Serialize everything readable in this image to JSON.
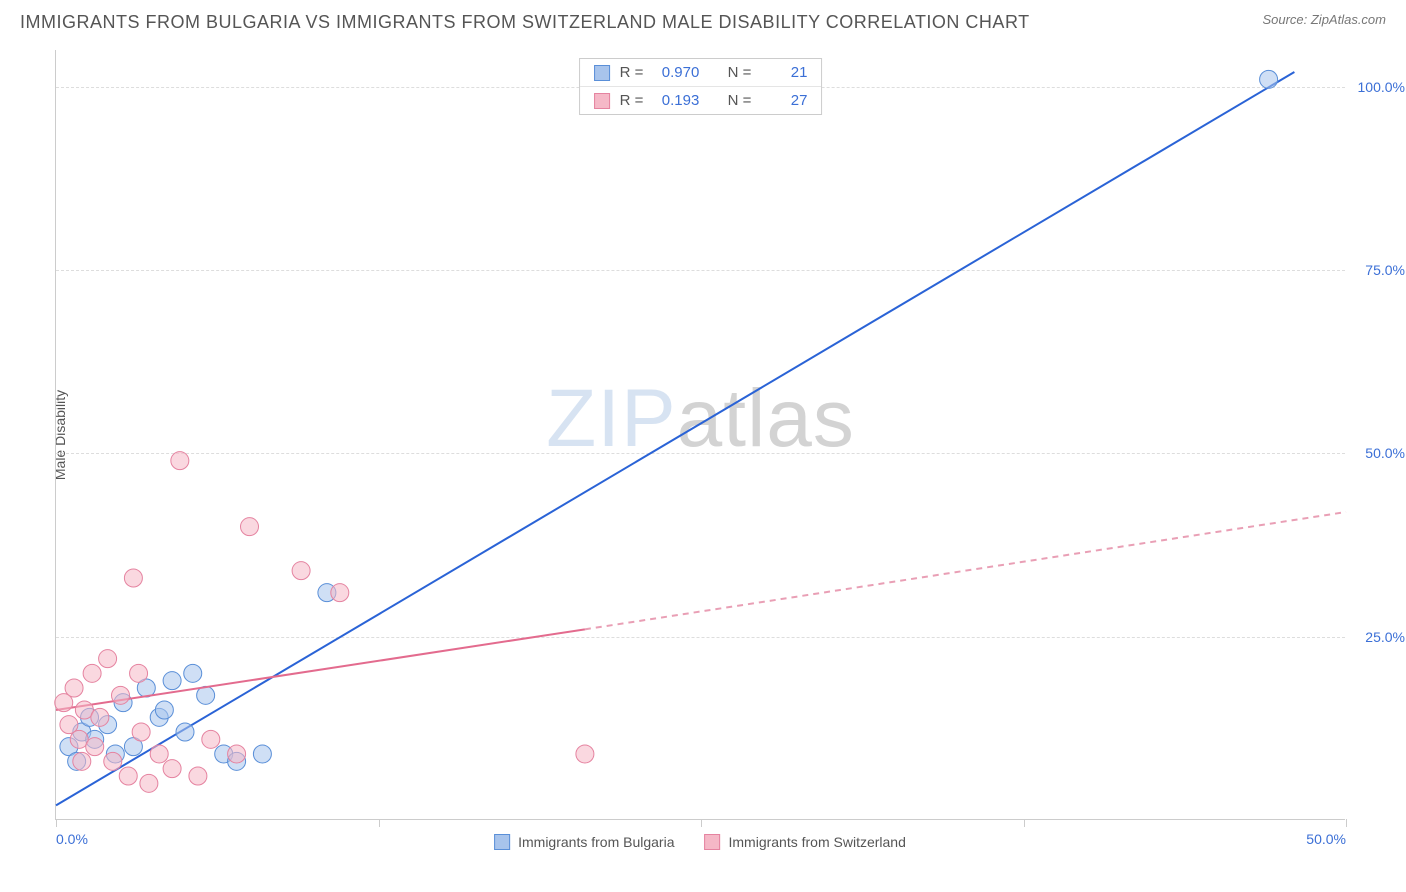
{
  "header": {
    "title": "IMMIGRANTS FROM BULGARIA VS IMMIGRANTS FROM SWITZERLAND MALE DISABILITY CORRELATION CHART",
    "source_prefix": "Source: ",
    "source": "ZipAtlas.com"
  },
  "chart": {
    "type": "scatter",
    "ylabel": "Male Disability",
    "watermark_a": "ZIP",
    "watermark_b": "atlas",
    "xlim": [
      0,
      50
    ],
    "ylim": [
      0,
      105
    ],
    "xtick_positions": [
      0,
      12.5,
      25,
      37.5,
      50
    ],
    "xtick_labels": [
      "0.0%",
      "",
      "",
      "",
      "50.0%"
    ],
    "ytick_positions": [
      25,
      50,
      75,
      100
    ],
    "ytick_labels": [
      "25.0%",
      "50.0%",
      "75.0%",
      "100.0%"
    ],
    "background": "#ffffff",
    "grid_color": "#dddddd",
    "axis_color": "#cccccc",
    "label_color": "#555555",
    "tick_label_color": "#3b6fd6",
    "marker_radius": 9,
    "marker_opacity": 0.55,
    "reg_linewidth_solid": 2,
    "series": [
      {
        "id": "bulgaria",
        "label": "Immigrants from Bulgaria",
        "color_fill": "#a8c4ec",
        "color_stroke": "#5a8fd8",
        "reg_line": {
          "x1": 0,
          "y1": 2,
          "x2": 48,
          "y2": 102,
          "dash": "none",
          "color": "#2a63d6"
        },
        "reg_line_ext": null,
        "stats": {
          "R": "0.970",
          "N": "21"
        },
        "points": [
          [
            0.5,
            10
          ],
          [
            0.8,
            8
          ],
          [
            1.0,
            12
          ],
          [
            1.3,
            14
          ],
          [
            1.5,
            11
          ],
          [
            2.0,
            13
          ],
          [
            2.3,
            9
          ],
          [
            2.6,
            16
          ],
          [
            3.0,
            10
          ],
          [
            3.5,
            18
          ],
          [
            4.0,
            14
          ],
          [
            4.5,
            19
          ],
          [
            5.0,
            12
          ],
          [
            5.3,
            20
          ],
          [
            5.8,
            17
          ],
          [
            6.5,
            9
          ],
          [
            7.0,
            8
          ],
          [
            8.0,
            9
          ],
          [
            10.5,
            31
          ],
          [
            47.0,
            101
          ],
          [
            4.2,
            15
          ]
        ]
      },
      {
        "id": "switzerland",
        "label": "Immigrants from Switzerland",
        "color_fill": "#f5b8c7",
        "color_stroke": "#e583a0",
        "reg_line": {
          "x1": 0,
          "y1": 15,
          "x2": 20.5,
          "y2": 26,
          "dash": "none",
          "color": "#e36b8e"
        },
        "reg_line_ext": {
          "x1": 20.5,
          "y1": 26,
          "x2": 50,
          "y2": 42,
          "dash": "6,5",
          "color": "#e99fb5"
        },
        "stats": {
          "R": "0.193",
          "N": "27"
        },
        "points": [
          [
            0.3,
            16
          ],
          [
            0.5,
            13
          ],
          [
            0.7,
            18
          ],
          [
            0.9,
            11
          ],
          [
            1.1,
            15
          ],
          [
            1.4,
            20
          ],
          [
            1.5,
            10
          ],
          [
            1.7,
            14
          ],
          [
            2.0,
            22
          ],
          [
            2.2,
            8
          ],
          [
            2.5,
            17
          ],
          [
            2.8,
            6
          ],
          [
            3.0,
            33
          ],
          [
            3.3,
            12
          ],
          [
            3.6,
            5
          ],
          [
            4.0,
            9
          ],
          [
            4.5,
            7
          ],
          [
            4.8,
            49
          ],
          [
            5.5,
            6
          ],
          [
            6.0,
            11
          ],
          [
            7.0,
            9
          ],
          [
            7.5,
            40
          ],
          [
            9.5,
            34
          ],
          [
            11.0,
            31
          ],
          [
            3.2,
            20
          ],
          [
            1.0,
            8
          ],
          [
            20.5,
            9
          ]
        ]
      }
    ],
    "legend_labels": {
      "R": "R =",
      "N": "N ="
    }
  }
}
